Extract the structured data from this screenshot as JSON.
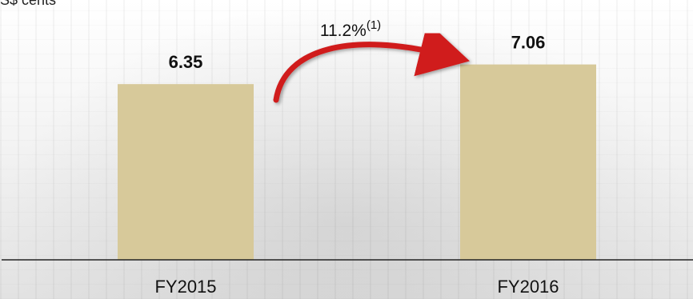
{
  "unit_label": "S$ cents",
  "chart_data": {
    "type": "bar",
    "categories": [
      "FY2015",
      "FY2016"
    ],
    "values": [
      6.35,
      7.06
    ],
    "value_labels": [
      "6.35",
      "7.06"
    ],
    "ylim": [
      0,
      7.8
    ],
    "bar_color": "#d7c99a",
    "annotations": {
      "growth_text": "11.2%",
      "growth_footnote": "(1)",
      "arrow_color": "#d01c1c"
    }
  }
}
